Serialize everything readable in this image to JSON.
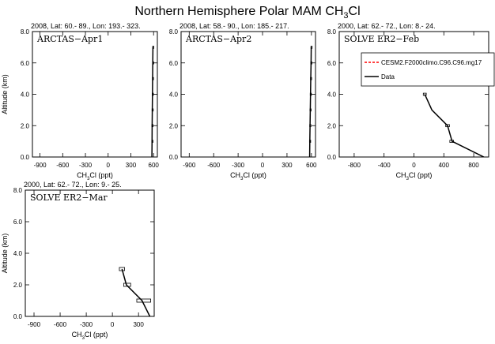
{
  "figure": {
    "title_main": "Northern Hemisphere Polar MAM CH",
    "title_sub": "3",
    "title_tail": "Cl"
  },
  "legend": {
    "entries": [
      {
        "label": "CESM2.F2000climo.C96.C96.mg17",
        "color": "#ff0000",
        "dash": "dashed"
      },
      {
        "label": "Data",
        "color": "#000000",
        "dash": "solid"
      }
    ]
  },
  "chart_data": [
    {
      "type": "line",
      "header": "2008, Lat:  60.- 89., Lon: 193.- 323.",
      "label": "ARCTAS−Apr1",
      "xlim": [
        -1000,
        650
      ],
      "ylim": [
        0,
        8
      ],
      "xticks": [
        -900,
        -600,
        -300,
        0,
        300,
        600
      ],
      "yticks": [
        0.0,
        2.0,
        4.0,
        6.0,
        8.0
      ],
      "xlabel": {
        "pre": "CH",
        "sub": "3",
        "post": "Cl (ppt)"
      },
      "ylabel": "Altitude (km)",
      "series": [
        {
          "name": "Data",
          "x": [
            578,
            580,
            581,
            583,
            585,
            587,
            589,
            591
          ],
          "y": [
            0.0,
            1.0,
            2.0,
            3.0,
            4.0,
            5.0,
            6.0,
            7.0
          ]
        }
      ],
      "boxes": [
        {
          "xmin": 576,
          "xmax": 582,
          "ymin": 0.93,
          "ymax": 1.07
        },
        {
          "xmin": 578,
          "xmax": 584,
          "ymin": 1.93,
          "ymax": 2.07
        },
        {
          "xmin": 580,
          "xmax": 586,
          "ymin": 2.93,
          "ymax": 3.07
        },
        {
          "xmin": 582,
          "xmax": 588,
          "ymin": 3.93,
          "ymax": 4.07
        },
        {
          "xmin": 584,
          "xmax": 590,
          "ymin": 4.93,
          "ymax": 5.07
        },
        {
          "xmin": 586,
          "xmax": 592,
          "ymin": 5.93,
          "ymax": 6.07
        },
        {
          "xmin": 588,
          "xmax": 594,
          "ymin": 6.93,
          "ymax": 7.07
        }
      ]
    },
    {
      "type": "line",
      "header": "2008, Lat:  58.- 90., Lon: 185.- 217.",
      "label": "ARCTAS−Apr2",
      "xlim": [
        -1000,
        650
      ],
      "ylim": [
        0,
        8
      ],
      "xticks": [
        -900,
        -600,
        -300,
        0,
        300,
        600
      ],
      "yticks": [
        0.0,
        2.0,
        4.0,
        6.0,
        8.0
      ],
      "xlabel": {
        "pre": "CH",
        "sub": "3",
        "post": "Cl (ppt)"
      },
      "ylabel": "",
      "series": [
        {
          "name": "Data",
          "x": [
            578,
            580,
            583,
            586,
            589,
            592,
            596,
            598
          ],
          "y": [
            0.0,
            1.0,
            2.0,
            3.0,
            4.0,
            5.0,
            6.0,
            7.0
          ]
        }
      ],
      "boxes": [
        {
          "xmin": 576,
          "xmax": 584,
          "ymin": 0.93,
          "ymax": 1.07
        },
        {
          "xmin": 579,
          "xmax": 587,
          "ymin": 1.93,
          "ymax": 2.07
        },
        {
          "xmin": 582,
          "xmax": 590,
          "ymin": 2.93,
          "ymax": 3.07
        },
        {
          "xmin": 585,
          "xmax": 593,
          "ymin": 3.93,
          "ymax": 4.07
        },
        {
          "xmin": 588,
          "xmax": 596,
          "ymin": 4.93,
          "ymax": 5.07
        },
        {
          "xmin": 592,
          "xmax": 600,
          "ymin": 5.93,
          "ymax": 6.07
        },
        {
          "xmin": 594,
          "xmax": 602,
          "ymin": 6.93,
          "ymax": 7.07
        }
      ]
    },
    {
      "type": "line",
      "header": "2000, Lat:  62.- 72., Lon:   8.- 24.",
      "label": "SOLVE ER2−Feb",
      "xlim": [
        -1000,
        1000
      ],
      "ylim": [
        0,
        8
      ],
      "xticks": [
        -800,
        -400,
        0,
        400,
        800
      ],
      "yticks": [
        0.0,
        2.0,
        4.0,
        6.0,
        8.0
      ],
      "xlabel": {
        "pre": "CH",
        "sub": "3",
        "post": "Cl (ppt)"
      },
      "ylabel": "",
      "series": [
        {
          "name": "Data",
          "x": [
            935,
            510,
            450,
            240,
            145
          ],
          "y": [
            0.0,
            1.0,
            2.0,
            3.0,
            4.0
          ]
        }
      ],
      "boxes": [
        {
          "xmin": 480,
          "xmax": 530,
          "ymin": 0.93,
          "ymax": 1.07
        },
        {
          "xmin": 425,
          "xmax": 475,
          "ymin": 1.93,
          "ymax": 2.07
        },
        {
          "xmin": 125,
          "xmax": 165,
          "ymin": 3.93,
          "ymax": 4.07
        }
      ]
    },
    {
      "type": "line",
      "header": "2000, Lat:  62.- 72., Lon:   9.- 25.",
      "label": "SOLVE ER2−Mar",
      "xlim": [
        -1000,
        480
      ],
      "ylim": [
        0,
        8
      ],
      "xticks": [
        -900,
        -600,
        -300,
        0,
        300
      ],
      "yticks": [
        0.0,
        2.0,
        4.0,
        6.0,
        8.0
      ],
      "xlabel": {
        "pre": "CH",
        "sub": "3",
        "post": "Cl (ppt)"
      },
      "ylabel": "Altitude (km)",
      "series": [
        {
          "name": "Data",
          "x": [
            430,
            340,
            160,
            110
          ],
          "y": [
            0.0,
            1.0,
            2.0,
            3.0
          ]
        }
      ],
      "boxes": [
        {
          "xmin": 280,
          "xmax": 440,
          "ymin": 0.9,
          "ymax": 1.1
        },
        {
          "xmin": 130,
          "xmax": 210,
          "ymin": 1.9,
          "ymax": 2.1
        },
        {
          "xmin": 80,
          "xmax": 140,
          "ymin": 2.9,
          "ymax": 3.1
        }
      ]
    }
  ]
}
